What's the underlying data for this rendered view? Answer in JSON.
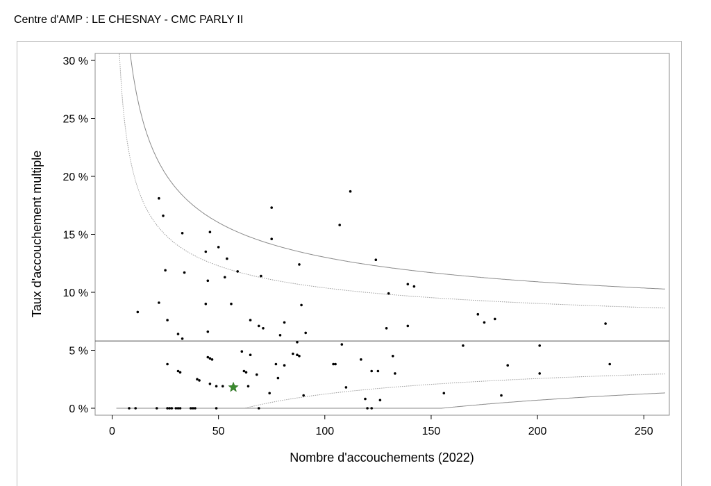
{
  "header": {
    "title": "Centre d'AMP : LE CHESNAY - CMC PARLY II"
  },
  "chart_data": {
    "type": "scatter",
    "title": "Centre d'AMP : LE CHESNAY - CMC PARLY II",
    "xlabel": "Nombre d'accouchements (2022)",
    "ylabel": "Taux d'accouchement multiple",
    "xlim": [
      -8,
      262
    ],
    "ylim": [
      -0.6,
      30.6
    ],
    "x_ticks": [
      0,
      50,
      100,
      150,
      200,
      250
    ],
    "x_tick_labels": [
      "0",
      "50",
      "100",
      "150",
      "200",
      "250"
    ],
    "y_ticks": [
      0,
      5,
      10,
      15,
      20,
      25,
      30
    ],
    "y_tick_labels": [
      "0 %",
      "5 %",
      "10 %",
      "15 %",
      "20 %",
      "25 %",
      "30 %"
    ],
    "mean_rate": 5.8,
    "highlighted_point": {
      "x": 57,
      "y": 1.8,
      "color": "#3a8a2e",
      "marker": "star"
    },
    "points": [
      [
        8,
        0
      ],
      [
        11,
        0
      ],
      [
        21,
        0
      ],
      [
        26,
        0
      ],
      [
        27,
        0
      ],
      [
        28,
        0
      ],
      [
        30,
        0
      ],
      [
        31,
        0
      ],
      [
        32,
        0
      ],
      [
        37,
        0
      ],
      [
        38,
        0
      ],
      [
        39,
        0
      ],
      [
        49,
        0
      ],
      [
        69,
        0
      ],
      [
        120,
        0
      ],
      [
        122,
        0
      ],
      [
        90,
        1.1
      ],
      [
        119,
        0.8
      ],
      [
        126,
        0.7
      ],
      [
        156,
        1.3
      ],
      [
        183,
        1.1
      ],
      [
        74,
        1.3
      ],
      [
        49,
        1.9
      ],
      [
        46,
        2.1
      ],
      [
        52,
        1.9
      ],
      [
        64,
        1.9
      ],
      [
        78,
        2.6
      ],
      [
        110,
        1.8
      ],
      [
        40,
        2.5
      ],
      [
        41,
        2.4
      ],
      [
        31,
        3.2
      ],
      [
        32,
        3.1
      ],
      [
        26,
        3.8
      ],
      [
        62,
        3.2
      ],
      [
        63,
        3.1
      ],
      [
        68,
        2.9
      ],
      [
        77,
        3.8
      ],
      [
        81,
        3.7
      ],
      [
        104,
        3.8
      ],
      [
        105,
        3.8
      ],
      [
        117,
        4.2
      ],
      [
        122,
        3.2
      ],
      [
        125,
        3.2
      ],
      [
        133,
        3.0
      ],
      [
        186,
        3.7
      ],
      [
        201,
        3.0
      ],
      [
        234,
        3.8
      ],
      [
        45,
        4.4
      ],
      [
        46,
        4.3
      ],
      [
        47,
        4.2
      ],
      [
        61,
        4.9
      ],
      [
        65,
        4.6
      ],
      [
        85,
        4.7
      ],
      [
        87,
        4.6
      ],
      [
        88,
        4.5
      ],
      [
        108,
        5.5
      ],
      [
        132,
        4.5
      ],
      [
        165,
        5.4
      ],
      [
        201,
        5.4
      ],
      [
        87,
        5.7
      ],
      [
        12,
        8.3
      ],
      [
        22,
        9.1
      ],
      [
        26,
        7.6
      ],
      [
        31,
        6.4
      ],
      [
        33,
        6.0
      ],
      [
        44,
        9.0
      ],
      [
        45,
        6.6
      ],
      [
        56,
        9.0
      ],
      [
        65,
        7.6
      ],
      [
        69,
        7.1
      ],
      [
        71,
        6.9
      ],
      [
        79,
        6.3
      ],
      [
        81,
        7.4
      ],
      [
        89,
        8.9
      ],
      [
        91,
        6.5
      ],
      [
        129,
        6.9
      ],
      [
        139,
        7.1
      ],
      [
        172,
        8.1
      ],
      [
        175,
        7.4
      ],
      [
        180,
        7.7
      ],
      [
        232,
        7.3
      ],
      [
        22,
        18.1
      ],
      [
        24,
        16.6
      ],
      [
        25,
        11.9
      ],
      [
        33,
        15.1
      ],
      [
        34,
        11.7
      ],
      [
        44,
        13.5
      ],
      [
        45,
        11.0
      ],
      [
        46,
        15.2
      ],
      [
        50,
        13.9
      ],
      [
        53,
        11.3
      ],
      [
        54,
        12.9
      ],
      [
        59,
        11.8
      ],
      [
        70,
        11.4
      ],
      [
        75,
        17.3
      ],
      [
        75,
        14.6
      ],
      [
        88,
        12.4
      ],
      [
        107,
        15.8
      ],
      [
        112,
        18.7
      ],
      [
        124,
        12.8
      ],
      [
        130,
        9.9
      ],
      [
        139,
        10.7
      ],
      [
        142,
        10.5
      ]
    ],
    "funnel": {
      "z_inner": 1.96,
      "z_outer": 3.09,
      "x_start": 2,
      "x_end": 260
    },
    "grid": false,
    "legend": "none"
  }
}
